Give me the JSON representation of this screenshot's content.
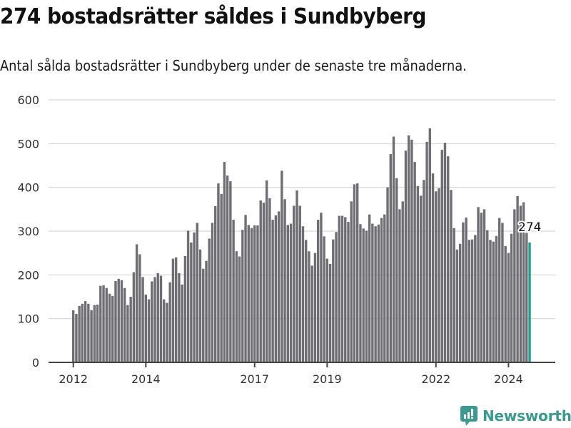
{
  "header": {
    "title": "274 bostadsrätter såldes i Sundbyberg",
    "subtitle": "Antal sålda bostadsrätter i Sundbyberg under de senaste tre månaderna."
  },
  "logo": {
    "text": "Newsworthy",
    "icon": "bar-chart-speech-bubble-icon",
    "color": "#3a9a8f"
  },
  "colors": {
    "bar": "#6f6e73",
    "highlight": "#1f9e92",
    "grid": "#dddddd",
    "axis": "#444444"
  },
  "chart_data": {
    "type": "bar",
    "title": "274 bostadsrätter såldes i Sundbyberg",
    "subtitle": "Antal sålda bostadsrätter i Sundbyberg under de senaste tre månaderna.",
    "xlabel": "",
    "ylabel": "",
    "ylim": [
      0,
      600
    ],
    "yticks": [
      0,
      100,
      200,
      300,
      400,
      500,
      600
    ],
    "grid": true,
    "x_start": "2012-01",
    "x_end": "2024-08",
    "frequency": "monthly",
    "xtick_labels": [
      "2012",
      "2014",
      "2017",
      "2019",
      "2022",
      "2024"
    ],
    "xtick_years": [
      2012,
      2014,
      2017,
      2019,
      2022,
      2024
    ],
    "highlight_last": true,
    "annotation": {
      "text": "274",
      "target": "last"
    },
    "values": [
      119,
      111,
      129,
      134,
      140,
      134,
      119,
      131,
      132,
      175,
      176,
      170,
      157,
      152,
      186,
      191,
      188,
      170,
      131,
      150,
      206,
      270,
      247,
      195,
      155,
      144,
      185,
      195,
      204,
      198,
      144,
      136,
      183,
      237,
      240,
      204,
      178,
      243,
      301,
      274,
      297,
      319,
      258,
      214,
      232,
      283,
      319,
      357,
      409,
      385,
      458,
      427,
      414,
      326,
      254,
      242,
      303,
      337,
      314,
      307,
      313,
      313,
      370,
      365,
      416,
      375,
      326,
      336,
      345,
      438,
      373,
      314,
      317,
      358,
      393,
      358,
      311,
      280,
      254,
      221,
      250,
      326,
      342,
      288,
      237,
      225,
      281,
      298,
      335,
      335,
      332,
      321,
      368,
      407,
      409,
      316,
      306,
      301,
      338,
      317,
      311,
      315,
      330,
      338,
      400,
      476,
      516,
      421,
      350,
      368,
      484,
      519,
      509,
      458,
      403,
      381,
      417,
      504,
      535,
      432,
      391,
      398,
      486,
      502,
      471,
      394,
      307,
      258,
      271,
      320,
      331,
      280,
      281,
      291,
      355,
      342,
      350,
      302,
      280,
      276,
      289,
      330,
      319,
      266,
      250,
      294,
      350,
      380,
      358,
      366,
      296,
      274
    ]
  }
}
